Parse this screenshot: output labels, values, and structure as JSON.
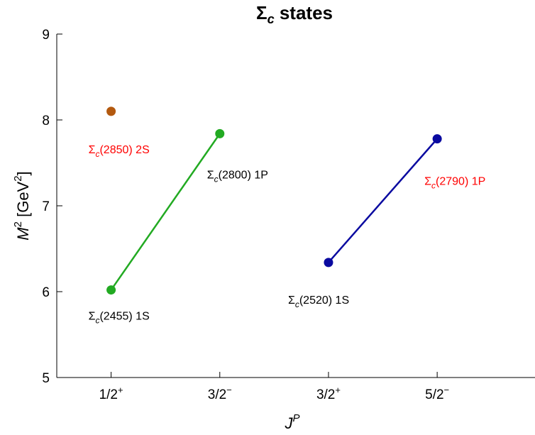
{
  "chart_data": {
    "type": "scatter",
    "title": {
      "main": "Σ",
      "sub": "c",
      "rest": " states"
    },
    "xlabel": {
      "main": "J",
      "sup": "P"
    },
    "ylabel": {
      "main": "M",
      "sup": "2",
      "rest": " [GeV",
      "sup2": "2",
      "end": "]"
    },
    "ylim": [
      5,
      9
    ],
    "xlim": [
      0.5,
      4.9
    ],
    "yticks": [
      5,
      6,
      7,
      8,
      9
    ],
    "xticks": [
      {
        "value": 1,
        "main": "1/2",
        "sup": "+"
      },
      {
        "value": 2,
        "main": "3/2",
        "sup": "−"
      },
      {
        "value": 3,
        "main": "3/2",
        "sup": "+"
      },
      {
        "value": 4,
        "main": "5/2",
        "sup": "−"
      }
    ],
    "series": [
      {
        "color": "#22aa22",
        "connected": true,
        "points": [
          {
            "x": 1,
            "y": 6.02
          },
          {
            "x": 2,
            "y": 7.84
          }
        ]
      },
      {
        "color": "#0a0aa0",
        "connected": true,
        "points": [
          {
            "x": 3,
            "y": 6.34
          },
          {
            "x": 4,
            "y": 7.78
          }
        ]
      },
      {
        "color": "#b3590f",
        "connected": false,
        "points": [
          {
            "x": 1,
            "y": 8.1
          }
        ]
      }
    ],
    "annotations": [
      {
        "symbol": "Σ",
        "sub": "c",
        "text": "(2455) 1S",
        "color": "#000000",
        "x": 1,
        "y": 6.02,
        "anchor": "below"
      },
      {
        "symbol": "Σ",
        "sub": "c",
        "text": "(2800) 1P",
        "color": "#000000",
        "x": 2,
        "y": 7.84,
        "anchor": "below"
      },
      {
        "symbol": "Σ",
        "sub": "c",
        "text": "(2850) 2S",
        "color": "#ff0000",
        "x": 1,
        "y": 8.1,
        "anchor": "below"
      },
      {
        "symbol": "Σ",
        "sub": "c",
        "text": "(2520) 1S",
        "color": "#000000",
        "x": 3,
        "y": 6.34,
        "anchor": "below"
      },
      {
        "symbol": "Σ",
        "sub": "c",
        "text": "(2790) 1P",
        "color": "#ff0000",
        "x": 4,
        "y": 7.78,
        "anchor": "below"
      }
    ]
  }
}
